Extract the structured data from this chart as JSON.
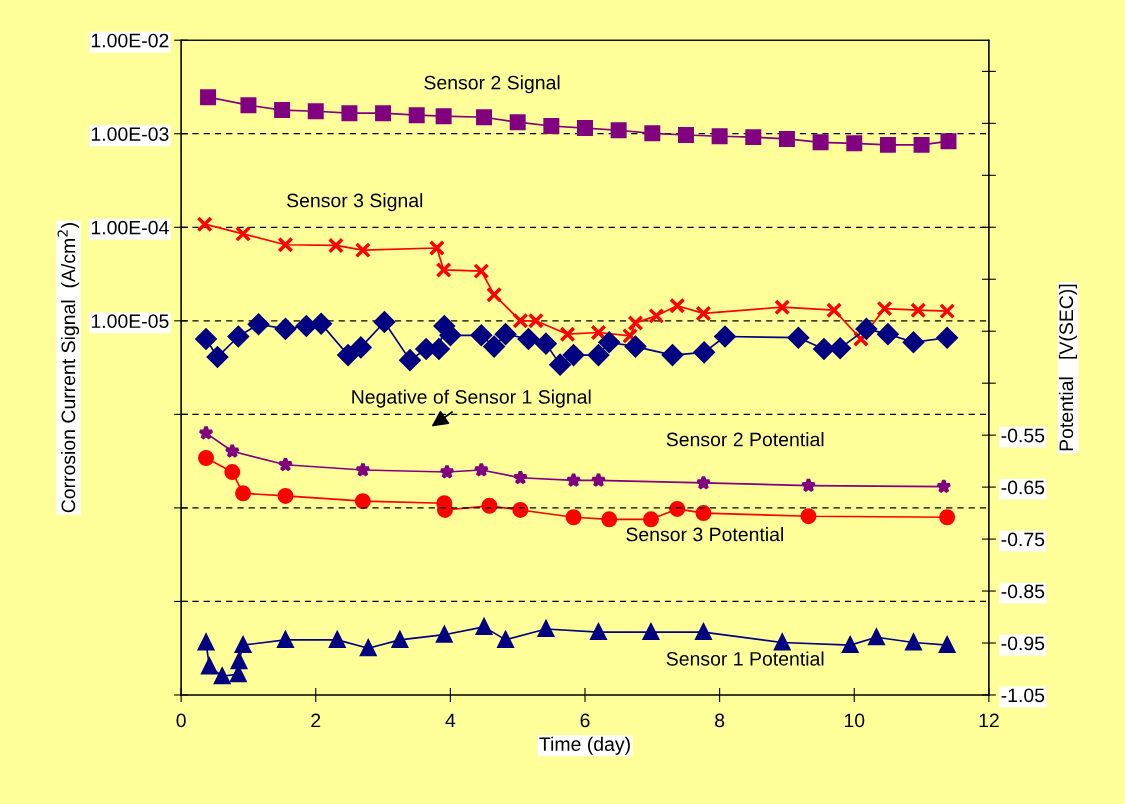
{
  "chart_data": {
    "type": "line",
    "xlabel": "Time (day)",
    "ylabel": "Corrosion Current Signal  (A/cm$^{2}$)",
    "y2label": "Potential   [V(SEC)]",
    "xlim": [
      0,
      12
    ],
    "xticks": [
      0,
      2,
      4,
      6,
      8,
      10,
      12
    ],
    "log": "y",
    "ylim": [
      1e-09,
      0.01
    ],
    "yticks": [
      {
        "value": 0.01,
        "label": "1.00E-02"
      },
      {
        "value": 0.001,
        "label": "1.00E-03"
      },
      {
        "value": 0.0001,
        "label": "1.00E-04"
      },
      {
        "value": 1e-05,
        "label": "1.00E-05"
      },
      {
        "value": 1e-06,
        "label": null
      },
      {
        "value": 1e-07,
        "label": null
      },
      {
        "value": 1e-08,
        "label": null
      },
      {
        "value": 1e-09,
        "label": null
      }
    ],
    "y2lim": [
      -1.05,
      0.21
    ],
    "y2ticks": [
      -1.05,
      -0.95,
      -0.85,
      -0.75,
      -0.65,
      -0.55,
      {
        "value": -0.45,
        "label": null
      },
      {
        "value": -0.35,
        "label": null
      },
      {
        "value": -0.25,
        "label": null
      },
      {
        "value": -0.15,
        "label": null
      },
      {
        "value": -0.05,
        "label": null
      },
      {
        "value": 0.05,
        "label": null
      },
      {
        "value": 0.15,
        "label": null
      }
    ],
    "grid": "y",
    "legend": false,
    "line_style": "solid",
    "series": [
      {
        "name": "Sensor 2 Signal",
        "color": "#800080",
        "marker": "square",
        "x": [
          0.4,
          1,
          1.5,
          2,
          2.5,
          3,
          3.5,
          3.9,
          4.5,
          5,
          5.5,
          6,
          6.5,
          7,
          7.5,
          8,
          8.5,
          9,
          9.5,
          10,
          10.5,
          11,
          11.4
        ],
        "values": [
          0.00246,
          0.00202,
          0.00179,
          0.00174,
          0.00166,
          0.00166,
          0.00158,
          0.00154,
          0.0015,
          0.00133,
          0.00121,
          0.00115,
          0.00109,
          0.00101,
          0.00097,
          0.00094,
          0.00092,
          0.00088,
          0.00081,
          0.00079,
          0.00076,
          0.00076,
          0.00083
        ]
      },
      {
        "name": "Sensor 3 Signal",
        "color": "#ff0000",
        "marker": "cross",
        "x": [
          0.35,
          0.92,
          1.55,
          2.3,
          2.7,
          3.8,
          3.9,
          4.46,
          4.65,
          5.04,
          5.27,
          5.74,
          6.2,
          6.67,
          6.75,
          7.06,
          7.37,
          7.76,
          8.93,
          9.7,
          10.1,
          10.45,
          10.95,
          11.38
        ],
        "values": [
          0.000108,
          8.5e-05,
          6.5e-05,
          6.4e-05,
          5.7e-05,
          6e-05,
          3.5e-05,
          3.4e-05,
          1.9e-05,
          1e-05,
          1e-05,
          7.2e-06,
          7.5e-06,
          6.9e-06,
          9.5e-06,
          1.13e-05,
          1.45e-05,
          1.2e-05,
          1.4e-05,
          1.3e-05,
          6.4e-06,
          1.35e-05,
          1.3e-05,
          1.27e-05
        ]
      },
      {
        "name": "Negative of Sensor 1 Signal",
        "color": "#000080",
        "marker": "diamond",
        "x": [
          0.37,
          0.54,
          0.85,
          1.15,
          1.55,
          1.86,
          2.08,
          2.48,
          2.67,
          3.02,
          3.4,
          3.64,
          3.83,
          3.91,
          4.0,
          4.46,
          4.65,
          4.82,
          5.16,
          5.42,
          5.63,
          5.83,
          6.2,
          6.36,
          6.75,
          7.3,
          7.77,
          8.08,
          9.17,
          9.55,
          9.79,
          10.18,
          10.5,
          10.88,
          11.38
        ],
        "values": [
          6.4e-06,
          4.1e-06,
          6.8e-06,
          9.2e-06,
          8.2e-06,
          8.8e-06,
          9.3e-06,
          4.3e-06,
          5.2e-06,
          9.7e-06,
          3.8e-06,
          5e-06,
          5e-06,
          8.8e-06,
          7e-06,
          7e-06,
          5.3e-06,
          7.2e-06,
          6.4e-06,
          5.7e-06,
          3.4e-06,
          4.3e-06,
          4.3e-06,
          5.9e-06,
          5.3e-06,
          4.3e-06,
          4.6e-06,
          6.8e-06,
          6.6e-06,
          5e-06,
          5.1e-06,
          8.2e-06,
          7.2e-06,
          5.9e-06,
          6.6e-06
        ]
      },
      {
        "name": "Sensor 2 Potential",
        "color": "#800080",
        "marker": "star",
        "axis": "y2",
        "x": [
          0.37,
          0.76,
          1.55,
          2.7,
          3.95,
          4.46,
          5.04,
          5.83,
          6.2,
          7.76,
          9.32,
          11.33
        ],
        "values": [
          -0.546,
          -0.581,
          -0.607,
          -0.617,
          -0.621,
          -0.617,
          -0.632,
          -0.637,
          -0.637,
          -0.642,
          -0.647,
          -0.649
        ]
      },
      {
        "name": "Sensor 3 Potential",
        "color": "#ff0000",
        "marker": "circle",
        "axis": "y2",
        "x": [
          0.37,
          0.76,
          0.92,
          1.55,
          2.7,
          3.91,
          3.92,
          4.58,
          5.04,
          5.83,
          6.36,
          6.98,
          7.37,
          7.76,
          9.32,
          11.38
        ],
        "values": [
          -0.594,
          -0.621,
          -0.662,
          -0.667,
          -0.677,
          -0.681,
          -0.694,
          -0.686,
          -0.694,
          -0.708,
          -0.712,
          -0.712,
          -0.692,
          -0.7,
          -0.706,
          -0.708
        ]
      },
      {
        "name": "Sensor 1 Potential",
        "color": "#000080",
        "marker": "triangle",
        "axis": "y2",
        "x": [
          0.37,
          0.42,
          0.61,
          0.85,
          0.86,
          0.92,
          1.55,
          2.32,
          2.78,
          3.25,
          3.91,
          4.5,
          4.82,
          5.42,
          6.2,
          6.98,
          7.76,
          8.93,
          9.94,
          10.33,
          10.88,
          11.38
        ],
        "values": [
          -0.949,
          -0.995,
          -1.014,
          -1.01,
          -0.985,
          -0.954,
          -0.944,
          -0.944,
          -0.96,
          -0.944,
          -0.934,
          -0.919,
          -0.944,
          -0.923,
          -0.929,
          -0.929,
          -0.929,
          -0.949,
          -0.954,
          -0.939,
          -0.949,
          -0.954
        ]
      }
    ]
  }
}
